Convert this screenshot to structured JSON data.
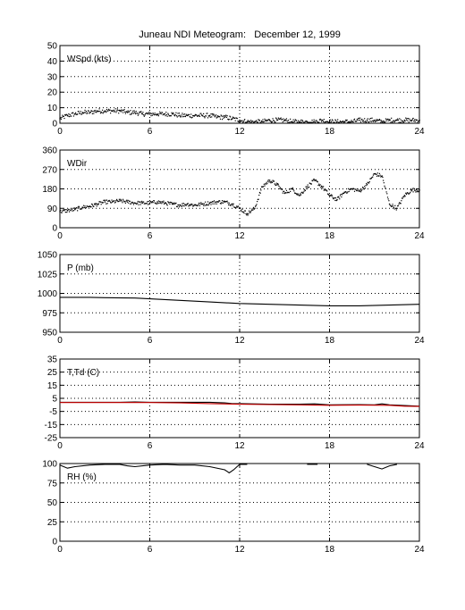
{
  "title": "Juneau NDI Meteogram:   December 12, 1999",
  "chart_data": [
    {
      "type": "scatter",
      "label": "WSpd (kts)",
      "xlim": [
        0,
        24
      ],
      "ylim": [
        0,
        50
      ],
      "xticks": [
        "0",
        "6",
        "12",
        "18",
        "24"
      ],
      "yticks": [
        "0",
        "10",
        "20",
        "30",
        "40",
        "50"
      ],
      "grid": true,
      "series": [
        {
          "color": "#000000",
          "points": [
            [
              0,
              3
            ],
            [
              0.5,
              5
            ],
            [
              1,
              6
            ],
            [
              1.5,
              7
            ],
            [
              2,
              7
            ],
            [
              2.5,
              8
            ],
            [
              3,
              8
            ],
            [
              3.5,
              8
            ],
            [
              4,
              8
            ],
            [
              4.5,
              7
            ],
            [
              5,
              7
            ],
            [
              5.5,
              6
            ],
            [
              6,
              6
            ],
            [
              6.5,
              6
            ],
            [
              7,
              6
            ],
            [
              7.5,
              6
            ],
            [
              8,
              5
            ],
            [
              8.5,
              5
            ],
            [
              9,
              5
            ],
            [
              9.5,
              5
            ],
            [
              10,
              5
            ],
            [
              10.5,
              4
            ],
            [
              11,
              4
            ],
            [
              11.5,
              3
            ],
            [
              12,
              2
            ],
            [
              12.5,
              1
            ],
            [
              13,
              1
            ],
            [
              13.5,
              1
            ],
            [
              14,
              2
            ],
            [
              14.5,
              2
            ],
            [
              15,
              2
            ],
            [
              15.5,
              1
            ],
            [
              16,
              1
            ],
            [
              16.5,
              1
            ],
            [
              17,
              1
            ],
            [
              17.5,
              2
            ],
            [
              18,
              1
            ],
            [
              18.5,
              1
            ],
            [
              19,
              1
            ],
            [
              19.5,
              1
            ],
            [
              20,
              2
            ],
            [
              20.5,
              2
            ],
            [
              21,
              2
            ],
            [
              21.5,
              1
            ],
            [
              22,
              2
            ],
            [
              22.5,
              2
            ],
            [
              23,
              2
            ],
            [
              23.5,
              2
            ],
            [
              24,
              2
            ]
          ]
        }
      ]
    },
    {
      "type": "scatter",
      "label": "WDir",
      "xlim": [
        0,
        24
      ],
      "ylim": [
        0,
        360
      ],
      "xticks": [
        "0",
        "6",
        "12",
        "18",
        "24"
      ],
      "yticks": [
        "0",
        "90",
        "180",
        "270",
        "360"
      ],
      "grid": true,
      "series": [
        {
          "color": "#000000",
          "points": [
            [
              0,
              75
            ],
            [
              0.5,
              80
            ],
            [
              1,
              85
            ],
            [
              1.5,
              95
            ],
            [
              2,
              100
            ],
            [
              2.5,
              110
            ],
            [
              3,
              120
            ],
            [
              3.5,
              120
            ],
            [
              4,
              125
            ],
            [
              4.5,
              120
            ],
            [
              5,
              115
            ],
            [
              5.5,
              115
            ],
            [
              6,
              115
            ],
            [
              6.5,
              120
            ],
            [
              7,
              115
            ],
            [
              7.5,
              110
            ],
            [
              8,
              105
            ],
            [
              8.5,
              110
            ],
            [
              9,
              105
            ],
            [
              9.5,
              110
            ],
            [
              10,
              115
            ],
            [
              10.5,
              120
            ],
            [
              11,
              120
            ],
            [
              11.5,
              110
            ],
            [
              12,
              90
            ],
            [
              12.5,
              65
            ],
            [
              13,
              90
            ],
            [
              13.5,
              190
            ],
            [
              14,
              220
            ],
            [
              14.5,
              200
            ],
            [
              15,
              160
            ],
            [
              15.5,
              180
            ],
            [
              16,
              150
            ],
            [
              16.5,
              190
            ],
            [
              17,
              220
            ],
            [
              17.5,
              190
            ],
            [
              18,
              150
            ],
            [
              18.5,
              130
            ],
            [
              19,
              165
            ],
            [
              19.5,
              180
            ],
            [
              20,
              170
            ],
            [
              20.5,
              200
            ],
            [
              21,
              250
            ],
            [
              21.5,
              240
            ],
            [
              22,
              110
            ],
            [
              22.5,
              90
            ],
            [
              23,
              150
            ],
            [
              23.5,
              175
            ],
            [
              24,
              175
            ]
          ]
        }
      ]
    },
    {
      "type": "line",
      "label": "P (mb)",
      "xlim": [
        0,
        24
      ],
      "ylim": [
        950,
        1050
      ],
      "xticks": [
        "0",
        "6",
        "12",
        "18",
        "24"
      ],
      "yticks": [
        "950",
        "975",
        "1000",
        "1025",
        "1050"
      ],
      "grid": true,
      "series": [
        {
          "color": "#000000",
          "points": [
            [
              0,
              995
            ],
            [
              2,
              995
            ],
            [
              3,
              994.5
            ],
            [
              5,
              994
            ],
            [
              6,
              993
            ],
            [
              8,
              991
            ],
            [
              10,
              989
            ],
            [
              12,
              987
            ],
            [
              14,
              986
            ],
            [
              16,
              985
            ],
            [
              18,
              984
            ],
            [
              20,
              984
            ],
            [
              22,
              985
            ],
            [
              24,
              986
            ]
          ]
        }
      ]
    },
    {
      "type": "line",
      "label": "T,Td (C)",
      "xlim": [
        0,
        24
      ],
      "ylim": [
        -25,
        35
      ],
      "xticks": [
        "0",
        "6",
        "12",
        "18",
        "24"
      ],
      "yticks": [
        "-25",
        "-15",
        "-5",
        "5",
        "15",
        "25",
        "35"
      ],
      "grid": true,
      "series": [
        {
          "color": "#000000",
          "points": [
            [
              0,
              2
            ],
            [
              2,
              2
            ],
            [
              4,
              2
            ],
            [
              5,
              2.2
            ],
            [
              6,
              2
            ],
            [
              8,
              2
            ],
            [
              10,
              2
            ],
            [
              11,
              1.5
            ],
            [
              11.5,
              1
            ],
            [
              12,
              1
            ],
            [
              14,
              0.5
            ],
            [
              16,
              0.5
            ],
            [
              17,
              0.8
            ],
            [
              18,
              0
            ],
            [
              20,
              0.2
            ],
            [
              21,
              0
            ],
            [
              21.5,
              0.8
            ],
            [
              22,
              0
            ],
            [
              23,
              -0.5
            ],
            [
              24,
              -1
            ]
          ]
        },
        {
          "color": "#cc0000",
          "points": [
            [
              0,
              1.8
            ],
            [
              2,
              1.8
            ],
            [
              4,
              1.8
            ],
            [
              6,
              1.8
            ],
            [
              8,
              1.5
            ],
            [
              10,
              1
            ],
            [
              12,
              0.5
            ],
            [
              14,
              0.2
            ],
            [
              16,
              0
            ],
            [
              18,
              -0.3
            ],
            [
              20,
              -0.2
            ],
            [
              22,
              -0.3
            ],
            [
              23,
              -1
            ],
            [
              24,
              -1.2
            ]
          ]
        }
      ]
    },
    {
      "type": "line",
      "label": "RH (%)",
      "xlim": [
        0,
        24
      ],
      "ylim": [
        0,
        100
      ],
      "xticks": [
        "0",
        "6",
        "12",
        "18",
        "24"
      ],
      "yticks": [
        "0",
        "25",
        "50",
        "75",
        "100"
      ],
      "grid": true,
      "series": [
        {
          "color": "#000000",
          "points": [
            [
              0,
              98
            ],
            [
              0.5,
              94
            ],
            [
              1,
              96
            ],
            [
              2,
              98
            ],
            [
              3,
              99
            ],
            [
              4,
              99
            ],
            [
              4.5,
              97
            ],
            [
              5,
              96
            ],
            [
              6,
              98
            ],
            [
              7,
              99
            ],
            [
              8,
              98
            ],
            [
              9,
              98
            ],
            [
              10,
              96
            ],
            [
              11,
              92
            ],
            [
              11.3,
              88
            ],
            [
              11.6,
              92
            ],
            [
              12,
              99
            ],
            [
              12.5,
              99
            ]
          ]
        },
        {
          "color": "#000000",
          "points": [
            [
              16.5,
              99
            ],
            [
              17.2,
              99
            ]
          ]
        },
        {
          "color": "#000000",
          "points": [
            [
              20.5,
              99
            ],
            [
              21,
              96
            ],
            [
              21.5,
              93
            ],
            [
              22,
              97
            ],
            [
              22.5,
              99
            ]
          ]
        }
      ]
    }
  ]
}
